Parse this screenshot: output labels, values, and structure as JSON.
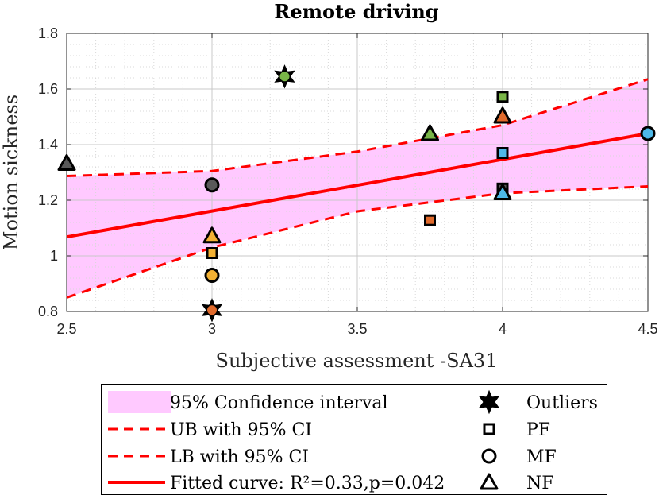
{
  "chart_data": {
    "type": "scatter",
    "title": "Remote driving",
    "xlabel": "Subjective assessment -SA31",
    "ylabel": "Motion sickness",
    "xlim": [
      2.5,
      4.5
    ],
    "ylim": [
      0.8,
      1.8
    ],
    "xticks": [
      "2.5",
      "3",
      "3.5",
      "4",
      "4.5"
    ],
    "yticks": [
      "0.8",
      "1",
      "1.2",
      "1.4",
      "1.6",
      "1.8"
    ],
    "grid": true,
    "legend_position": "bottom-outside",
    "confidence_band": {
      "x": [
        2.5,
        3.0,
        3.5,
        4.0,
        4.5
      ],
      "upper": [
        1.287,
        1.305,
        1.375,
        1.47,
        1.635
      ],
      "lower": [
        0.85,
        1.03,
        1.16,
        1.225,
        1.25
      ]
    },
    "fitted_curve": {
      "x": [
        2.5,
        4.5
      ],
      "y": [
        1.068,
        1.44
      ]
    },
    "points": [
      {
        "x": 2.5,
        "y": 1.333,
        "shape": "NF",
        "color": "#595959"
      },
      {
        "x": 3.0,
        "y": 1.255,
        "shape": "MF",
        "color": "#595959"
      },
      {
        "x": 3.0,
        "y": 1.072,
        "shape": "NF",
        "color": "#f2b134"
      },
      {
        "x": 3.0,
        "y": 1.01,
        "shape": "PF",
        "color": "#f2b134"
      },
      {
        "x": 3.0,
        "y": 0.93,
        "shape": "MF",
        "color": "#f2b134"
      },
      {
        "x": 3.0,
        "y": 0.805,
        "shape": "Outliers",
        "color": "#e06a2c"
      },
      {
        "x": 3.25,
        "y": 1.645,
        "shape": "Outliers",
        "color": "#7ab648"
      },
      {
        "x": 3.75,
        "y": 1.44,
        "shape": "NF",
        "color": "#7ab648"
      },
      {
        "x": 3.75,
        "y": 1.128,
        "shape": "PF",
        "color": "#e06a2c"
      },
      {
        "x": 4.0,
        "y": 1.572,
        "shape": "PF",
        "color": "#7ab648"
      },
      {
        "x": 4.0,
        "y": 1.503,
        "shape": "NF",
        "color": "#e06a2c"
      },
      {
        "x": 4.0,
        "y": 1.37,
        "shape": "PF",
        "color": "#4db8e8"
      },
      {
        "x": 4.0,
        "y": 1.242,
        "shape": "PF",
        "color": "#595959"
      },
      {
        "x": 4.0,
        "y": 1.227,
        "shape": "NF",
        "color": "#4db8e8"
      },
      {
        "x": 4.5,
        "y": 1.44,
        "shape": "MF",
        "color": "#4db8e8"
      }
    ],
    "colors": {
      "band": "#ffc9ff",
      "line": "#ff0000"
    },
    "legend": {
      "left": [
        {
          "key": "band",
          "label": "95% Confidence interval"
        },
        {
          "key": "ub",
          "label": "UB with 95% CI"
        },
        {
          "key": "lb",
          "label": "LB with 95% CI"
        },
        {
          "key": "fit",
          "label": "Fitted curve: R²=0.33,p=0.042"
        }
      ],
      "right": [
        {
          "key": "Outliers",
          "label": "Outliers"
        },
        {
          "key": "PF",
          "label": "PF"
        },
        {
          "key": "MF",
          "label": "MF"
        },
        {
          "key": "NF",
          "label": "NF"
        }
      ]
    }
  }
}
